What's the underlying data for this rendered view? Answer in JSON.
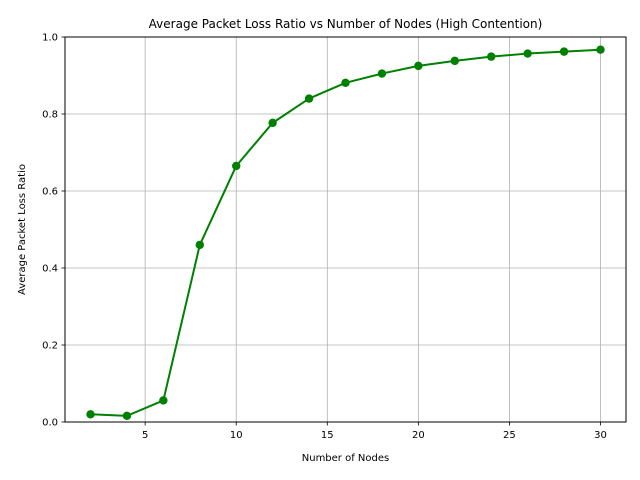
{
  "chart_data": {
    "type": "line",
    "title": "Average Packet Loss Ratio vs Number of Nodes (High Contention)",
    "xlabel": "Number of Nodes",
    "ylabel": "Average Packet Loss Ratio",
    "x": [
      2,
      4,
      6,
      8,
      10,
      12,
      14,
      16,
      18,
      20,
      22,
      24,
      26,
      28,
      30
    ],
    "series": [
      {
        "values": [
          0.02,
          0.016,
          0.056,
          0.46,
          0.665,
          0.777,
          0.84,
          0.881,
          0.905,
          0.925,
          0.938,
          0.949,
          0.957,
          0.962,
          0.967
        ],
        "color": "#008000",
        "marker": "circle"
      }
    ],
    "xlim": [
      0.6,
      31.4
    ],
    "ylim": [
      0,
      1.0
    ],
    "xticks": [
      5,
      10,
      15,
      20,
      25,
      30
    ],
    "yticks": [
      0.0,
      0.2,
      0.4,
      0.6,
      0.8,
      1.0
    ],
    "xtick_labels": [
      "5",
      "10",
      "15",
      "20",
      "25",
      "30"
    ],
    "ytick_labels": [
      "0.0",
      "0.2",
      "0.4",
      "0.6",
      "0.8",
      "1.0"
    ],
    "grid": true,
    "legend": "none"
  }
}
